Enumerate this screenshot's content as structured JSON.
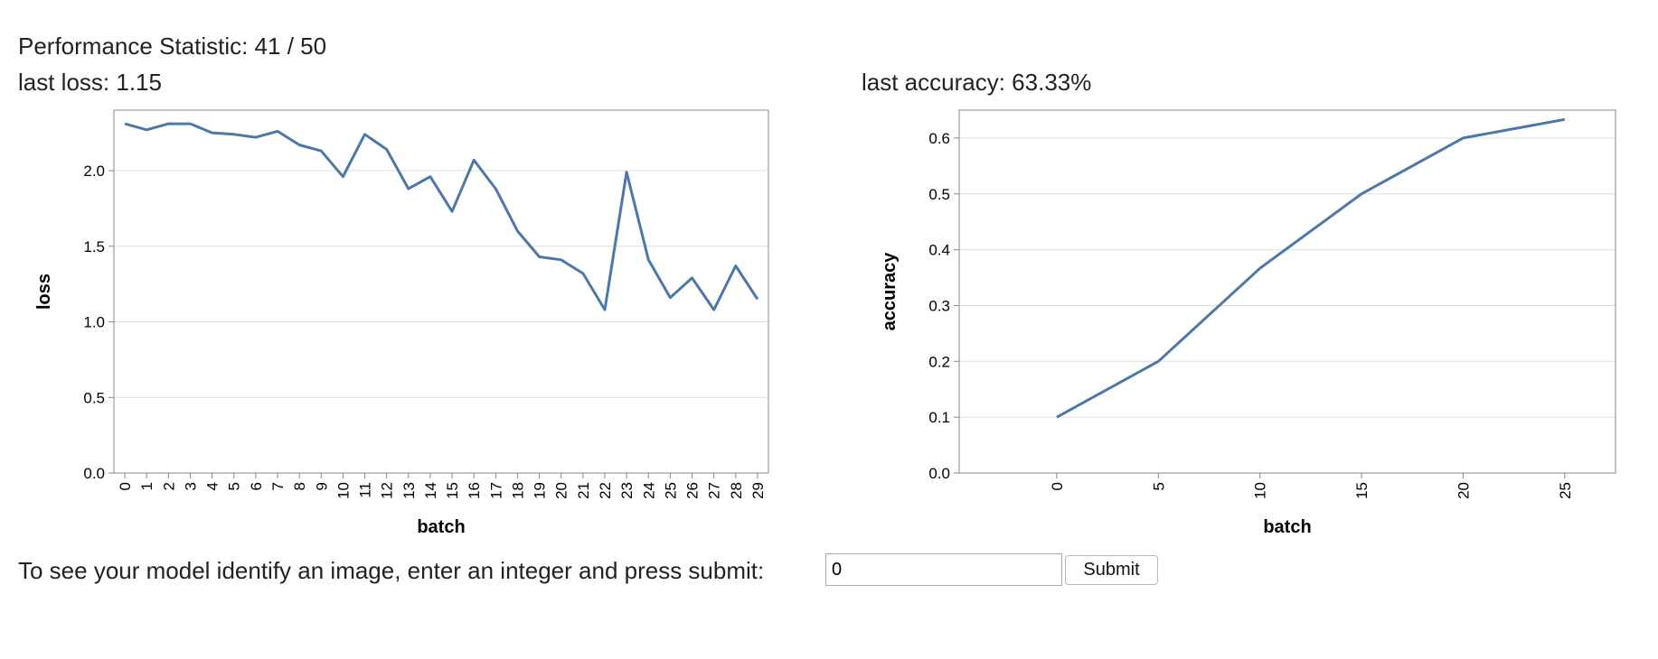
{
  "header": {
    "stat_label": "Performance Statistic: ",
    "stat_value": "41 / 50",
    "loss_label": "last loss: ",
    "loss_value": "1.15",
    "acc_label": "last accuracy: ",
    "acc_value": "63.33%"
  },
  "colors": {
    "series": "#4c78a8",
    "grid": "#dddddd",
    "axis": "#888888"
  },
  "chart_data": [
    {
      "type": "line",
      "title": "",
      "xlabel": "batch",
      "ylabel": "loss",
      "x": [
        0,
        1,
        2,
        3,
        4,
        5,
        6,
        7,
        8,
        9,
        10,
        11,
        12,
        13,
        14,
        15,
        16,
        17,
        18,
        19,
        20,
        21,
        22,
        23,
        24,
        25,
        26,
        27,
        28,
        29
      ],
      "y": [
        2.31,
        2.27,
        2.31,
        2.31,
        2.25,
        2.24,
        2.22,
        2.26,
        2.17,
        2.13,
        1.96,
        2.24,
        2.14,
        1.88,
        1.96,
        1.73,
        2.07,
        1.88,
        1.6,
        1.43,
        1.41,
        1.32,
        1.08,
        1.99,
        1.41,
        1.16,
        1.29,
        1.08,
        1.37,
        1.15
      ],
      "yticks": [
        0.0,
        0.5,
        1.0,
        1.5,
        2.0
      ],
      "ylim": [
        0,
        2.4
      ],
      "grid": true
    },
    {
      "type": "line",
      "title": "",
      "xlabel": "batch",
      "ylabel": "accuracy",
      "x": [
        0,
        5,
        10,
        15,
        20,
        25
      ],
      "y": [
        0.1,
        0.2,
        0.3667,
        0.5,
        0.6,
        0.6333
      ],
      "xticks": [
        0,
        5,
        10,
        15,
        20,
        25
      ],
      "yticks": [
        0.0,
        0.1,
        0.2,
        0.3,
        0.4,
        0.5,
        0.6
      ],
      "xlim": [
        -4.8,
        27.5
      ],
      "ylim": [
        0,
        0.65
      ],
      "grid": true
    }
  ],
  "form": {
    "prompt": "To see your model identify an image, enter an integer and press submit:",
    "input_value": "0",
    "submit_label": "Submit"
  }
}
